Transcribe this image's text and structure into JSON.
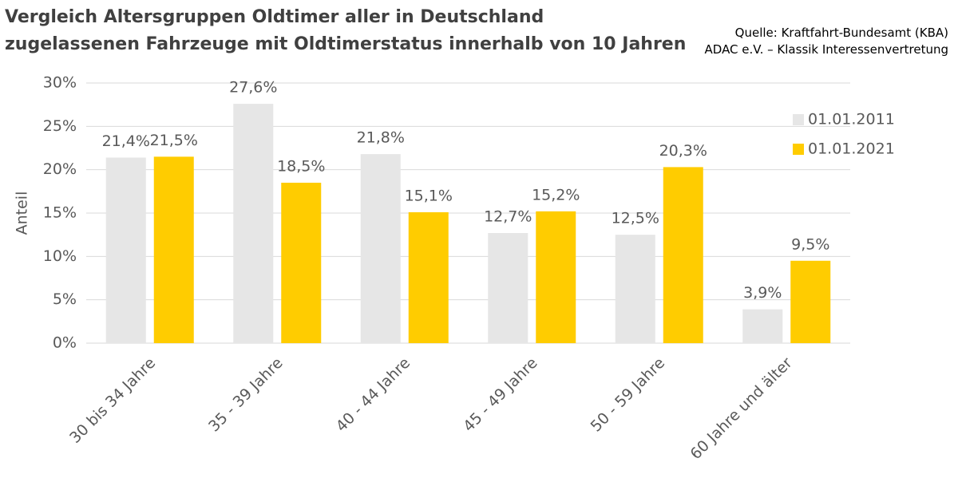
{
  "chart_data": {
    "type": "bar",
    "title": [
      "Vergleich Altersgruppen Oldtimer aller in Deutschland",
      "zugelassenen Fahrzeuge mit Oldtimerstatus innerhalb von 10 Jahren"
    ],
    "source": [
      "Quelle: Kraftfahrt-Bundesamt (KBA)",
      "ADAC e.V. – Klassik Interessenvertretung"
    ],
    "ylabel": "Anteil",
    "categories": [
      "30 bis 34 Jahre",
      "35 - 39 Jahre",
      "40 - 44 Jahre",
      "45 - 49 Jahre",
      "50 - 59 Jahre",
      "60 Jahre und älter"
    ],
    "series": [
      {
        "name": "01.01.2011",
        "color": "#e6e6e6",
        "values": [
          21.4,
          27.6,
          21.8,
          12.7,
          12.5,
          3.9
        ],
        "value_labels": [
          "21,4%",
          "27,6%",
          "21,8%",
          "12,7%",
          "12,5%",
          "3,9%"
        ]
      },
      {
        "name": "01.01.2021",
        "color": "#ffcc00",
        "values": [
          21.5,
          18.5,
          15.1,
          15.2,
          20.3,
          9.5
        ],
        "value_labels": [
          "21,5%",
          "18,5%",
          "15,1%",
          "15,2%",
          "20,3%",
          "9,5%"
        ]
      }
    ],
    "ylim": [
      0,
      30
    ],
    "yticks": [
      {
        "value": 0,
        "label": "0%"
      },
      {
        "value": 5,
        "label": "5%"
      },
      {
        "value": 10,
        "label": "10%"
      },
      {
        "value": 15,
        "label": "15%"
      },
      {
        "value": 20,
        "label": "20%"
      },
      {
        "value": 25,
        "label": "25%"
      },
      {
        "value": 30,
        "label": "30%"
      }
    ],
    "grid": true,
    "legend": "right"
  }
}
